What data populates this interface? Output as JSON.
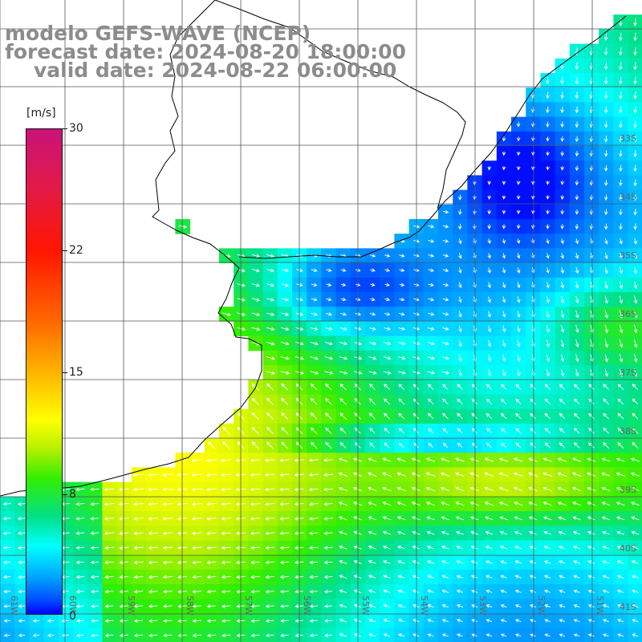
{
  "title": {
    "line1": "modelo GEFS-WAVE (NCEP)",
    "line2": "forecast date: 2024-08-20 18:00:00",
    "line3": "valid date: 2024-08-22 06:00:00"
  },
  "colorbar": {
    "unit": "[m/s]",
    "ticks": [
      "30",
      "22",
      "15",
      "8",
      "0"
    ],
    "tick_values": [
      30,
      22,
      15,
      8,
      0
    ]
  },
  "lat_labels": [
    "33S",
    "34S",
    "35S",
    "36S",
    "37S",
    "38S",
    "39S",
    "40S",
    "41S"
  ],
  "lon_labels": [
    "61W",
    "60W",
    "59W",
    "58W",
    "57W",
    "56W",
    "55W",
    "54W",
    "53W",
    "52W",
    "51W"
  ],
  "colors": {
    "land": "#ffffff",
    "grid": "#555555",
    "coast": "#000000",
    "arrow": "#ffffff",
    "title": "#8c8c8c"
  },
  "field": {
    "variable": "wind speed",
    "direction_note": "arrows show wind direction",
    "regions": [
      {
        "label": "blue low-speed band along coast",
        "speed": 3
      },
      {
        "label": "green offshore",
        "speed": 12
      },
      {
        "label": "yellow maximum",
        "speed": 15
      }
    ]
  }
}
